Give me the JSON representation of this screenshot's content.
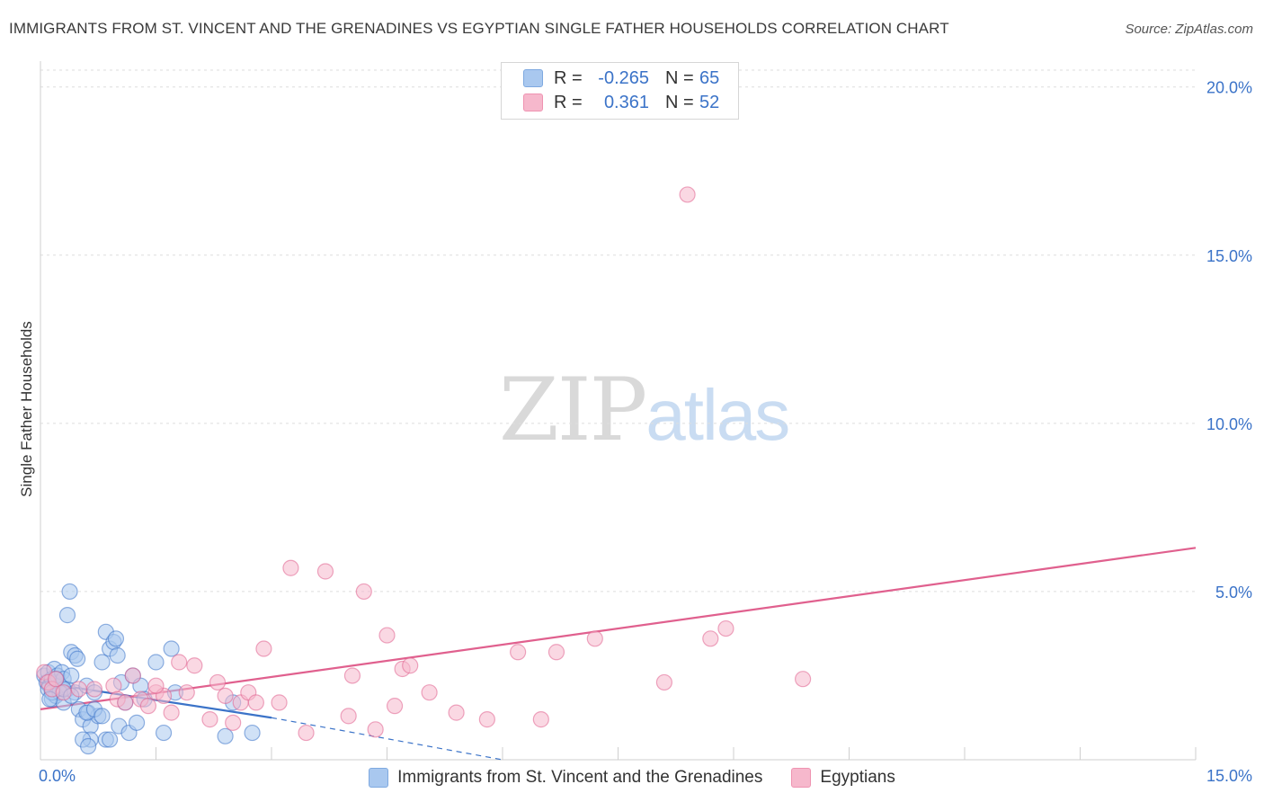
{
  "header": {
    "title": "IMMIGRANTS FROM ST. VINCENT AND THE GRENADINES VS EGYPTIAN SINGLE FATHER HOUSEHOLDS CORRELATION CHART",
    "source": "Source: ZipAtlas.com"
  },
  "watermark": {
    "zip": "ZIP",
    "atlas": "atlas"
  },
  "legend": {
    "r_label": "R =",
    "n_label": "N =",
    "rows": [
      {
        "r": "-0.265",
        "n": "65",
        "color": "#a9c8ef"
      },
      {
        "r": "0.361",
        "n": "52",
        "color": "#f6b8cc"
      }
    ]
  },
  "bottom_legend": [
    {
      "label": "Immigrants from St. Vincent and the Grenadines",
      "color": "#a9c8ef"
    },
    {
      "label": "Egyptians",
      "color": "#f6b8cc"
    }
  ],
  "chart_data": {
    "type": "scatter",
    "title": "IMMIGRANTS FROM ST. VINCENT AND THE GRENADINES VS EGYPTIAN SINGLE FATHER HOUSEHOLDS CORRELATION CHART",
    "xlabel": "",
    "ylabel": "Single Father Households",
    "xlim": [
      0,
      15
    ],
    "ylim": [
      0,
      20.5
    ],
    "x_tick_labels": [
      "0.0%",
      "15.0%"
    ],
    "y_ticks": [
      5,
      10,
      15,
      20
    ],
    "y_tick_labels": [
      "5.0%",
      "10.0%",
      "15.0%",
      "20.0%"
    ],
    "grid": true,
    "series": [
      {
        "name": "Immigrants from St. Vincent and the Grenadines",
        "color": "#3b73c8",
        "marker_fill": "#a9c8ef",
        "trend": {
          "x": [
            0,
            3.0
          ],
          "y": [
            2.3,
            1.25
          ],
          "dashed_to": [
            6.0,
            0.0
          ]
        },
        "points": [
          [
            0.05,
            2.5
          ],
          [
            0.08,
            2.3
          ],
          [
            0.1,
            2.6
          ],
          [
            0.12,
            2.2
          ],
          [
            0.15,
            2.4
          ],
          [
            0.18,
            2.7
          ],
          [
            0.2,
            2.3
          ],
          [
            0.22,
            2.5
          ],
          [
            0.25,
            2.2
          ],
          [
            0.28,
            2.6
          ],
          [
            0.3,
            2.4
          ],
          [
            0.35,
            2.1
          ],
          [
            0.4,
            2.5
          ],
          [
            0.45,
            2.0
          ],
          [
            0.1,
            2.1
          ],
          [
            0.15,
            1.8
          ],
          [
            0.2,
            1.9
          ],
          [
            0.25,
            2.0
          ],
          [
            0.3,
            1.7
          ],
          [
            0.35,
            4.3
          ],
          [
            0.38,
            5.0
          ],
          [
            0.4,
            3.2
          ],
          [
            0.45,
            3.1
          ],
          [
            0.48,
            3.0
          ],
          [
            0.5,
            1.5
          ],
          [
            0.55,
            1.2
          ],
          [
            0.6,
            2.2
          ],
          [
            0.62,
            1.4
          ],
          [
            0.65,
            1.0
          ],
          [
            0.7,
            2.0
          ],
          [
            0.75,
            1.3
          ],
          [
            0.8,
            2.9
          ],
          [
            0.85,
            3.8
          ],
          [
            0.9,
            3.3
          ],
          [
            0.95,
            3.5
          ],
          [
            0.98,
            3.6
          ],
          [
            1.0,
            3.1
          ],
          [
            1.02,
            1.0
          ],
          [
            1.05,
            2.3
          ],
          [
            1.1,
            1.7
          ],
          [
            1.15,
            0.8
          ],
          [
            1.2,
            2.5
          ],
          [
            1.25,
            1.1
          ],
          [
            1.3,
            2.2
          ],
          [
            1.35,
            1.8
          ],
          [
            1.5,
            2.9
          ],
          [
            1.6,
            0.8
          ],
          [
            1.7,
            3.3
          ],
          [
            1.75,
            2.0
          ],
          [
            2.4,
            0.7
          ],
          [
            2.5,
            1.7
          ],
          [
            2.75,
            0.8
          ],
          [
            0.6,
            1.4
          ],
          [
            0.65,
            0.6
          ],
          [
            0.7,
            1.5
          ],
          [
            0.8,
            1.3
          ],
          [
            0.85,
            0.6
          ],
          [
            0.9,
            0.6
          ],
          [
            0.55,
            0.6
          ],
          [
            0.62,
            0.4
          ],
          [
            0.3,
            2.1
          ],
          [
            0.2,
            2.4
          ],
          [
            0.15,
            2.0
          ],
          [
            0.12,
            1.8
          ],
          [
            0.4,
            1.9
          ]
        ]
      },
      {
        "name": "Egyptians",
        "color": "#e0608e",
        "marker_fill": "#f6b8cc",
        "trend": {
          "x": [
            0,
            15
          ],
          "y": [
            1.5,
            6.3
          ]
        },
        "points": [
          [
            0.05,
            2.6
          ],
          [
            0.1,
            2.3
          ],
          [
            0.15,
            2.1
          ],
          [
            0.2,
            2.4
          ],
          [
            0.3,
            2.0
          ],
          [
            0.5,
            2.1
          ],
          [
            0.7,
            2.1
          ],
          [
            0.95,
            2.2
          ],
          [
            1.0,
            1.8
          ],
          [
            1.1,
            1.7
          ],
          [
            1.2,
            2.5
          ],
          [
            1.3,
            1.8
          ],
          [
            1.4,
            1.6
          ],
          [
            1.5,
            2.0
          ],
          [
            1.6,
            1.9
          ],
          [
            1.7,
            1.4
          ],
          [
            1.8,
            2.9
          ],
          [
            1.9,
            2.0
          ],
          [
            2.0,
            2.8
          ],
          [
            2.2,
            1.2
          ],
          [
            2.3,
            2.3
          ],
          [
            2.4,
            1.9
          ],
          [
            2.5,
            1.1
          ],
          [
            2.6,
            1.7
          ],
          [
            2.7,
            2.0
          ],
          [
            2.8,
            1.7
          ],
          [
            2.9,
            3.3
          ],
          [
            3.1,
            1.7
          ],
          [
            3.25,
            5.7
          ],
          [
            3.45,
            0.8
          ],
          [
            3.7,
            5.6
          ],
          [
            4.0,
            1.3
          ],
          [
            4.05,
            2.5
          ],
          [
            4.2,
            5.0
          ],
          [
            4.35,
            0.9
          ],
          [
            4.5,
            3.7
          ],
          [
            4.6,
            1.6
          ],
          [
            4.7,
            2.7
          ],
          [
            4.8,
            2.8
          ],
          [
            5.05,
            2.0
          ],
          [
            5.4,
            1.4
          ],
          [
            5.8,
            1.2
          ],
          [
            6.2,
            3.2
          ],
          [
            6.5,
            1.2
          ],
          [
            6.7,
            3.2
          ],
          [
            7.2,
            3.6
          ],
          [
            8.1,
            2.3
          ],
          [
            8.7,
            3.6
          ],
          [
            8.9,
            3.9
          ],
          [
            9.9,
            2.4
          ],
          [
            8.4,
            16.8
          ],
          [
            1.5,
            2.2
          ]
        ]
      }
    ]
  }
}
